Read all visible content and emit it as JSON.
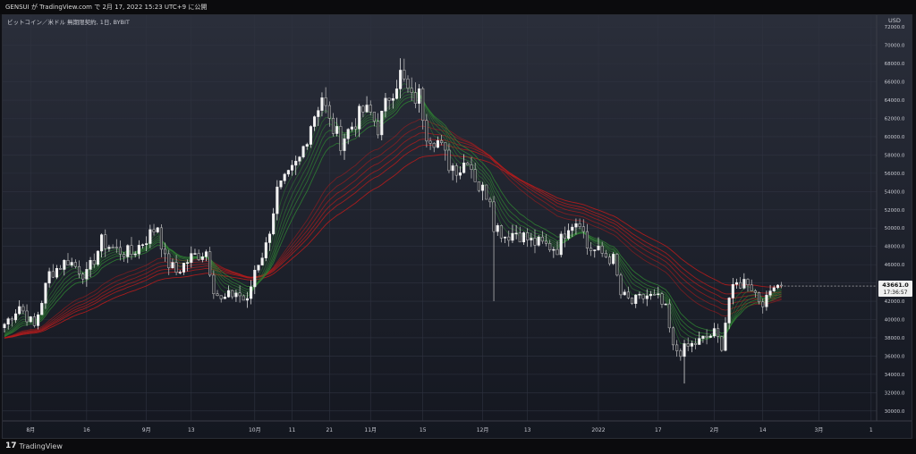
{
  "header": {
    "publish_text": "GENSUI が TradingView.com で 2月 17, 2022 15:23 UTC+9 に公開"
  },
  "footer": {
    "logo_text": "TradingView",
    "logo_mark": "17"
  },
  "chart_data": {
    "type": "candlestick",
    "title": "ビットコイン／米ドル 無期限契約, 1日, BYBIT",
    "currency_label": "USD",
    "ylim": [
      29000,
      73000
    ],
    "y_ticks": [
      30000,
      32000,
      34000,
      36000,
      38000,
      40000,
      42000,
      44000,
      46000,
      48000,
      50000,
      52000,
      54000,
      56000,
      58000,
      60000,
      62000,
      64000,
      66000,
      68000,
      70000,
      72000
    ],
    "y_tick_labels": [
      "30000.0",
      "32000.0",
      "34000.0",
      "36000.0",
      "38000.0",
      "40000.0",
      "42000.0",
      "44000.0",
      "46000.0",
      "48000.0",
      "50000.0",
      "52000.0",
      "54000.0",
      "56000.0",
      "58000.0",
      "60000.0",
      "62000.0",
      "64000.0",
      "66000.0",
      "68000.0",
      "70000.0",
      "72000.0"
    ],
    "x_ticks": [
      {
        "label": "8月",
        "day": 7
      },
      {
        "label": "16",
        "day": 22
      },
      {
        "label": "9月",
        "day": 38
      },
      {
        "label": "13",
        "day": 50
      },
      {
        "label": "10月",
        "day": 67
      },
      {
        "label": "11",
        "day": 77
      },
      {
        "label": "21",
        "day": 87
      },
      {
        "label": "11月",
        "day": 98
      },
      {
        "label": "15",
        "day": 112
      },
      {
        "label": "12月",
        "day": 128
      },
      {
        "label": "13",
        "day": 140
      },
      {
        "label": "2022",
        "day": 159
      },
      {
        "label": "17",
        "day": 175
      },
      {
        "label": "2月",
        "day": 190
      },
      {
        "label": "14",
        "day": 203
      },
      {
        "label": "3月",
        "day": 218
      },
      {
        "label": "1",
        "day": 232
      }
    ],
    "x_range": [
      0,
      233
    ],
    "last_price": "43661.0",
    "countdown": "17:36:57",
    "anchor_closes": [
      [
        0,
        39500
      ],
      [
        4,
        41500
      ],
      [
        8,
        39200
      ],
      [
        12,
        45000
      ],
      [
        17,
        46500
      ],
      [
        22,
        44800
      ],
      [
        26,
        48500
      ],
      [
        30,
        47600
      ],
      [
        34,
        47200
      ],
      [
        38,
        48900
      ],
      [
        41,
        50300
      ],
      [
        43,
        46500
      ],
      [
        46,
        45200
      ],
      [
        50,
        46800
      ],
      [
        54,
        47500
      ],
      [
        56,
        43500
      ],
      [
        58,
        42000
      ],
      [
        62,
        43000
      ],
      [
        65,
        41800
      ],
      [
        67,
        45500
      ],
      [
        70,
        48000
      ],
      [
        73,
        54000
      ],
      [
        76,
        55500
      ],
      [
        79,
        57500
      ],
      [
        82,
        61500
      ],
      [
        85,
        64500
      ],
      [
        87,
        61500
      ],
      [
        90,
        59500
      ],
      [
        93,
        61200
      ],
      [
        96,
        62800
      ],
      [
        98,
        62500
      ],
      [
        100,
        61000
      ],
      [
        103,
        64500
      ],
      [
        106,
        66800
      ],
      [
        109,
        64000
      ],
      [
        111,
        64500
      ],
      [
        113,
        60500
      ],
      [
        116,
        59500
      ],
      [
        119,
        57000
      ],
      [
        122,
        56500
      ],
      [
        124,
        57800
      ],
      [
        127,
        54500
      ],
      [
        130,
        53500
      ],
      [
        131,
        50500
      ],
      [
        134,
        49200
      ],
      [
        137,
        49600
      ],
      [
        141,
        48500
      ],
      [
        144,
        48200
      ],
      [
        148,
        47800
      ],
      [
        151,
        50500
      ],
      [
        154,
        51000
      ],
      [
        156,
        47900
      ],
      [
        160,
        47200
      ],
      [
        163,
        46500
      ],
      [
        165,
        42700
      ],
      [
        168,
        41800
      ],
      [
        172,
        42600
      ],
      [
        175,
        42200
      ],
      [
        177,
        41000
      ],
      [
        179,
        36800
      ],
      [
        181,
        36500
      ],
      [
        183,
        37000
      ],
      [
        187,
        37800
      ],
      [
        190,
        38500
      ],
      [
        192,
        37200
      ],
      [
        194,
        42400
      ],
      [
        196,
        43800
      ],
      [
        199,
        44300
      ],
      [
        202,
        42200
      ],
      [
        204,
        42000
      ],
      [
        206,
        44200
      ],
      [
        208,
        43661
      ]
    ],
    "ribbon_fast_periods": [
      4,
      6,
      8,
      10,
      12,
      15
    ],
    "ribbon_slow_periods": [
      30,
      35,
      40,
      45,
      50,
      60
    ],
    "colors": {
      "background_top": "#2a2e3a",
      "background_bottom": "#141720",
      "candle_up": "#f2f2f2",
      "candle_down": "#2b2d33",
      "candle_down_border": "#c9c9c9",
      "ribbon_fast": "#2e7d32",
      "ribbon_slow": "#b71c1c",
      "grid": "#2f3340",
      "axis_text": "#c8cad2",
      "price_tag_bg": "#f0f0f0",
      "price_tag_text": "#111111"
    }
  }
}
